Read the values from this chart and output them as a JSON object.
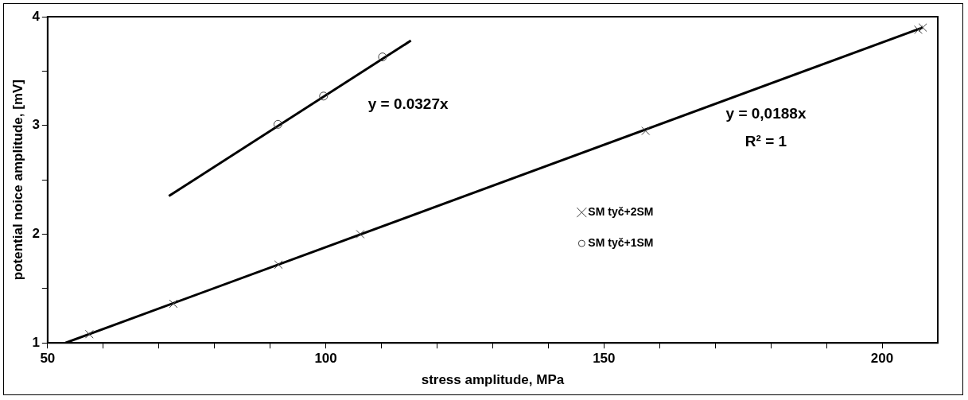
{
  "chart_data": {
    "type": "scatter",
    "xlabel": "stress amplitude, MPa",
    "ylabel": "potential noice amplitude, [mV]",
    "xlim": [
      50,
      210
    ],
    "xticks": [
      50,
      {
        "value": 60,
        "label": null
      },
      {
        "value": 70,
        "label": null
      },
      {
        "value": 80,
        "label": null
      },
      {
        "value": 90,
        "label": null
      },
      100,
      {
        "value": 110,
        "label": null
      },
      {
        "value": 120,
        "label": null
      },
      {
        "value": 130,
        "label": null
      },
      {
        "value": 140,
        "label": null
      },
      150,
      {
        "value": 160,
        "label": null
      },
      {
        "value": 170,
        "label": null
      },
      {
        "value": 180,
        "label": null
      },
      {
        "value": 190,
        "label": null
      },
      200
    ],
    "ylim": [
      1,
      4
    ],
    "yticks": [
      1,
      {
        "value": 1.5,
        "label": null
      },
      2,
      {
        "value": 2.5,
        "label": null
      },
      3,
      {
        "value": 3.5,
        "label": null
      },
      4
    ],
    "grid": false,
    "legend": "right",
    "series": [
      {
        "name": "SM tyč+2SM",
        "color": "#404040",
        "marker": "cross",
        "x": [
          57.5,
          72.6,
          91.5,
          106.2,
          157.5,
          206.5,
          207.3
        ],
        "values": [
          1.08,
          1.36,
          1.72,
          2.0,
          2.95,
          3.88,
          3.9
        ]
      },
      {
        "name": "SM tyč+1SM",
        "color": "#404040",
        "marker": "circle",
        "x": [
          91.4,
          99.6,
          110.2
        ],
        "values": [
          3.01,
          3.27,
          3.63
        ]
      },
      {
        "type": "line",
        "color": "#000000",
        "marker": "none",
        "x": [
          53.2,
          207.3
        ],
        "values": [
          1.0,
          3.9
        ]
      },
      {
        "type": "line",
        "color": "#000000",
        "marker": "none",
        "x": [
          71.8,
          115.3
        ],
        "values": [
          2.35,
          3.78
        ]
      }
    ],
    "annotations": [
      "y = 0.0327x",
      "y = 0,0188x",
      "R² = 1"
    ]
  }
}
